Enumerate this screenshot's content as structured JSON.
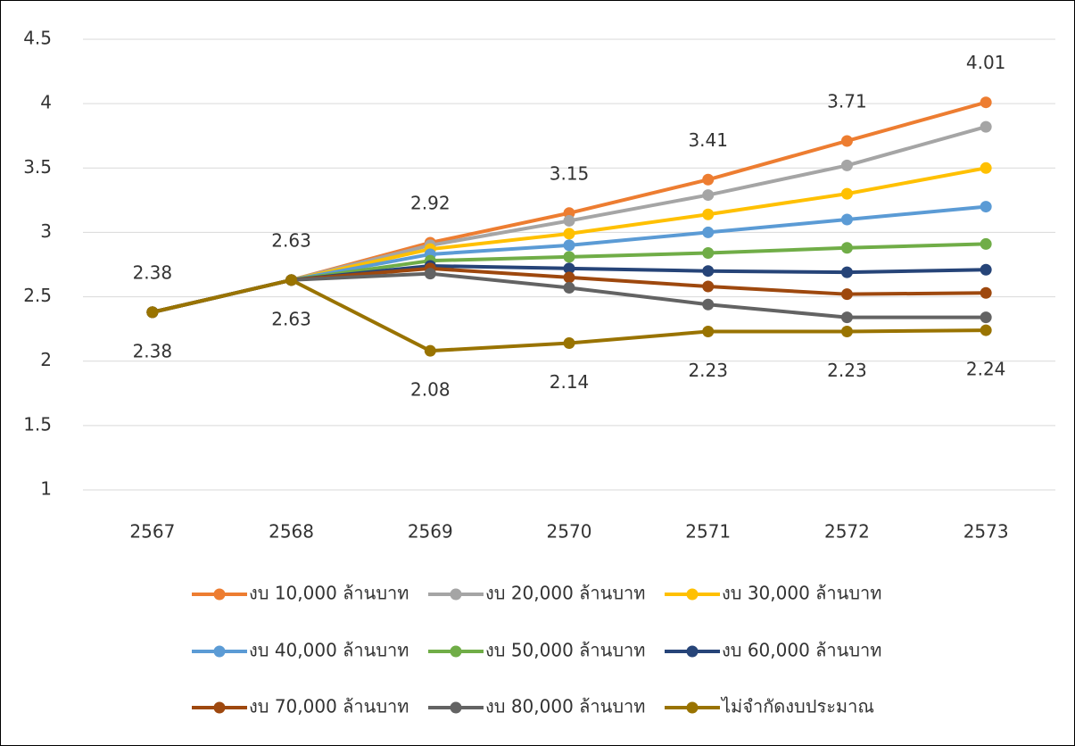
{
  "chart_data": {
    "type": "line",
    "categories": [
      "2567",
      "2568",
      "2569",
      "2570",
      "2571",
      "2572",
      "2573"
    ],
    "ylim": [
      1,
      4.5
    ],
    "yticks": [
      1,
      1.5,
      2,
      2.5,
      3,
      3.5,
      4,
      4.5
    ],
    "grid": true,
    "legend": "bottom",
    "series": [
      {
        "name": "งบ 10,000 ล้านบาท",
        "color": "#ed7d31",
        "values": [
          2.38,
          2.63,
          2.92,
          3.15,
          3.41,
          3.71,
          4.01
        ],
        "data_labels": "above"
      },
      {
        "name": "งบ 20,000 ล้านบาท",
        "color": "#a5a5a5",
        "values": [
          2.38,
          2.63,
          2.9,
          3.09,
          3.29,
          3.52,
          3.82
        ]
      },
      {
        "name": "งบ 30,000 ล้านบาท",
        "color": "#ffc000",
        "values": [
          2.38,
          2.63,
          2.87,
          2.99,
          3.14,
          3.3,
          3.5
        ]
      },
      {
        "name": "งบ 40,000 ล้านบาท",
        "color": "#5b9bd5",
        "values": [
          2.38,
          2.63,
          2.83,
          2.9,
          3.0,
          3.1,
          3.2
        ]
      },
      {
        "name": "งบ 50,000 ล้านบาท",
        "color": "#70ad47",
        "values": [
          2.38,
          2.63,
          2.78,
          2.81,
          2.84,
          2.88,
          2.91
        ]
      },
      {
        "name": "งบ 60,000 ล้านบาท",
        "color": "#264478",
        "values": [
          2.38,
          2.63,
          2.74,
          2.72,
          2.7,
          2.69,
          2.71
        ]
      },
      {
        "name": "งบ 70,000 ล้านบาท",
        "color": "#9e480e",
        "values": [
          2.38,
          2.63,
          2.72,
          2.65,
          2.58,
          2.52,
          2.53
        ]
      },
      {
        "name": "งบ 80,000 ล้านบาท",
        "color": "#636363",
        "values": [
          2.38,
          2.63,
          2.68,
          2.57,
          2.44,
          2.34,
          2.34
        ]
      },
      {
        "name": "ไม่จำกัดงบประมาณ",
        "color": "#997300",
        "values": [
          2.38,
          2.63,
          2.08,
          2.14,
          2.23,
          2.23,
          2.24
        ],
        "data_labels": "below"
      }
    ]
  }
}
